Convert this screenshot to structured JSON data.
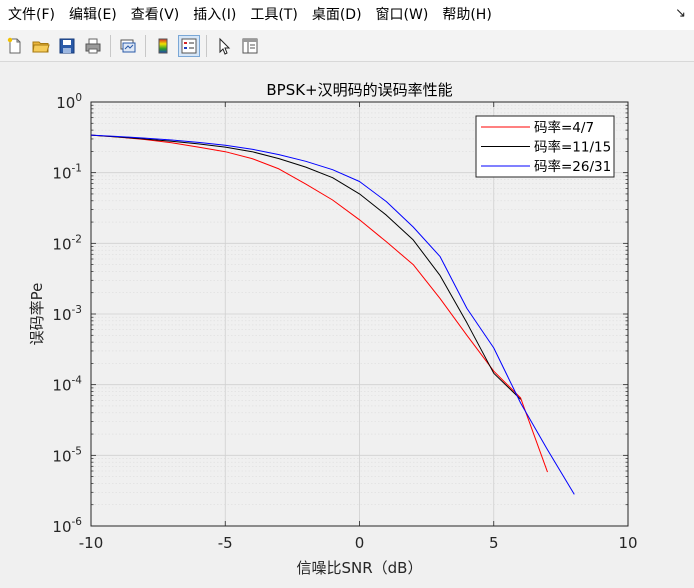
{
  "menu": {
    "items": [
      "文件(F)",
      "编辑(E)",
      "查看(V)",
      "插入(I)",
      "工具(T)",
      "桌面(D)",
      "窗口(W)",
      "帮助(H)"
    ],
    "arrow_icon": "dock-arrow-icon"
  },
  "toolbar": {
    "buttons": [
      {
        "name": "new-figure-button",
        "icon": "new-file-icon"
      },
      {
        "name": "open-file-button",
        "icon": "folder-icon"
      },
      {
        "name": "save-button",
        "icon": "save-icon"
      },
      {
        "name": "print-button",
        "icon": "printer-icon"
      },
      {
        "name": "link-plot-button",
        "icon": "link-plot-icon"
      },
      {
        "name": "colorbar-button",
        "icon": "colorbar-icon"
      },
      {
        "name": "legend-button",
        "icon": "legend-icon"
      },
      {
        "name": "edit-plot-button",
        "icon": "pointer-icon"
      },
      {
        "name": "property-editor-button",
        "icon": "property-editor-icon"
      }
    ]
  },
  "chart_data": {
    "type": "line",
    "title": "BPSK+汉明码的误码率性能",
    "xlabel": "信噪比SNR（dB）",
    "ylabel": "误码率Pe",
    "xlim": [
      -10,
      10
    ],
    "ylim": [
      1e-06,
      1
    ],
    "yscale": "log",
    "xticks": [
      -10,
      -5,
      0,
      5,
      10
    ],
    "yticks": [
      {
        "base": "10",
        "exp": "0"
      },
      {
        "base": "10",
        "exp": "-1"
      },
      {
        "base": "10",
        "exp": "-2"
      },
      {
        "base": "10",
        "exp": "-3"
      },
      {
        "base": "10",
        "exp": "-4"
      },
      {
        "base": "10",
        "exp": "-5"
      },
      {
        "base": "10",
        "exp": "-6"
      }
    ],
    "grid": true,
    "legend_position": "top-right",
    "series": [
      {
        "name": "码率=4/7",
        "color": "#ff0000",
        "x": [
          -10,
          -9,
          -8,
          -7,
          -6,
          -5,
          -4,
          -3,
          -2,
          -1,
          0,
          1,
          2,
          3,
          4,
          5,
          6,
          7
        ],
        "y": [
          0.34,
          0.32,
          0.295,
          0.265,
          0.23,
          0.198,
          0.158,
          0.113,
          0.069,
          0.041,
          0.0215,
          0.0105,
          0.005,
          0.00165,
          0.0005,
          0.000155,
          6.5e-05,
          5.8e-06
        ]
      },
      {
        "name": "码率=11/15",
        "color": "#000000",
        "x": [
          -10,
          -9,
          -8,
          -7,
          -6,
          -5,
          -4,
          -3,
          -2,
          -1,
          0,
          1,
          2,
          3,
          4,
          5,
          6
        ],
        "y": [
          0.34,
          0.32,
          0.3,
          0.278,
          0.255,
          0.23,
          0.198,
          0.158,
          0.12,
          0.085,
          0.05,
          0.025,
          0.0112,
          0.0035,
          0.00075,
          0.000145,
          6.2e-05
        ]
      },
      {
        "name": "码率=26/31",
        "color": "#0000ff",
        "x": [
          -10,
          -9,
          -8,
          -7,
          -6,
          -5,
          -4,
          -3,
          -2,
          -1,
          0,
          1,
          2,
          3,
          4,
          5,
          6,
          7,
          8
        ],
        "y": [
          0.34,
          0.325,
          0.308,
          0.29,
          0.268,
          0.245,
          0.215,
          0.18,
          0.145,
          0.11,
          0.075,
          0.039,
          0.017,
          0.0065,
          0.0012,
          0.00033,
          5.5e-05,
          1.2e-05,
          2.8e-06
        ]
      }
    ]
  }
}
